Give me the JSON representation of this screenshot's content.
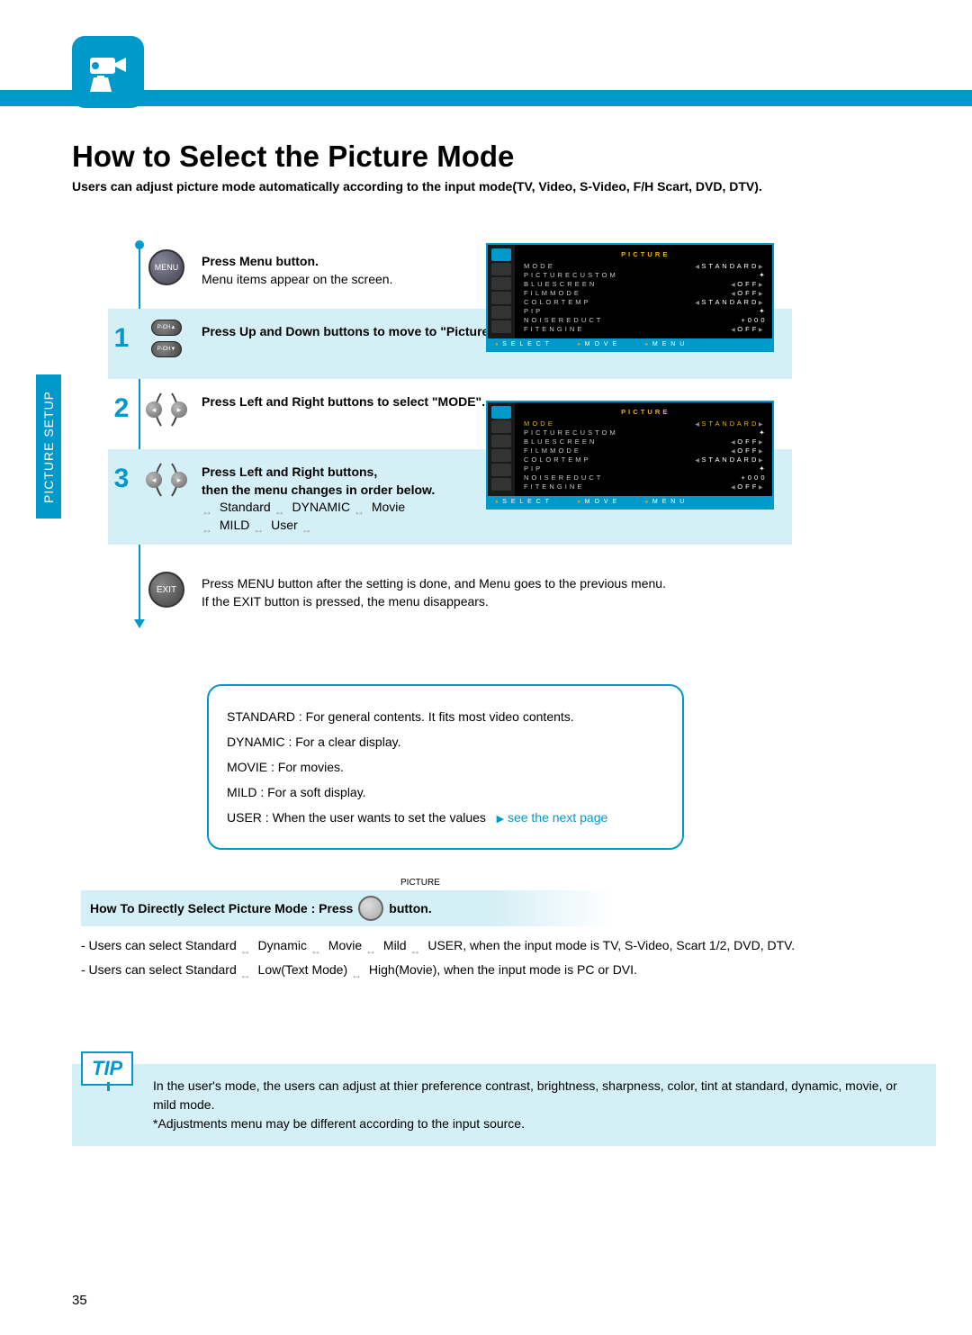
{
  "page_number": "35",
  "side_tab": "PICTURE SETUP",
  "title": "How to Select the Picture Mode",
  "intro": "Users can adjust picture mode automatically according to the input mode(TV, Video, S-Video, F/H Scart, DVD, DTV).",
  "colors": {
    "accent": "#0099cc",
    "shade": "#d4eff5",
    "osd_highlight": "#f9b000"
  },
  "steps": {
    "s0": {
      "button": "MENU",
      "bold": "Press Menu button.",
      "text": "Menu items appear on the screen."
    },
    "s1": {
      "num": "1",
      "button_up": "P-CH▲",
      "button_dn": "P-CH▼",
      "bold": "Press Up and Down buttons to move to \"Picture\" icon."
    },
    "s2": {
      "num": "2",
      "bold": "Press Left and Right buttons to select \"MODE\"."
    },
    "s3": {
      "num": "3",
      "bold1": "Press Left and Right buttons,",
      "bold2": "then the menu changes in order below.",
      "cycle1a": "Standard",
      "cycle1b": "DYNAMIC",
      "cycle1c": "Movie",
      "cycle2a": "MILD",
      "cycle2b": "User"
    },
    "exit": {
      "button": "EXIT",
      "line1": "Press MENU button after the setting is done, and Menu goes to the previous menu.",
      "line2": "If the EXIT button is pressed, the menu disappears."
    }
  },
  "osd": {
    "title": "P I C T U R E",
    "rows": [
      {
        "label": "M O D E",
        "value": "S T A N D A R D",
        "arrows": true,
        "highlight": true
      },
      {
        "label": "P I C T U R E   C U S T O M",
        "value": "",
        "enter": true
      },
      {
        "label": "B L U E   S C R E E N",
        "value": "O F F",
        "arrows": true
      },
      {
        "label": "F I L M   M O D E",
        "value": "O F F",
        "arrows": true
      },
      {
        "label": "C O L O R   T E M P",
        "value": "S T A N D A R D",
        "arrows": true
      },
      {
        "label": "P I P",
        "value": "",
        "enter": true
      },
      {
        "label": "N O I S E   R E D U C T",
        "value": "+ 0 0 0",
        "plain": true
      },
      {
        "label": "F I T   E N G I N E",
        "value": "O F F",
        "arrows": true
      }
    ],
    "footer": {
      "a": "S E L E C T",
      "b": "M O V E",
      "c": "M E N U"
    }
  },
  "definitions": {
    "d1": "STANDARD : For general contents. It fits most video contents.",
    "d2": "DYNAMIC : For a clear display.",
    "d3": "MOVIE : For movies.",
    "d4": "MILD : For a soft display.",
    "d5a": "USER : When the user wants to set the values",
    "d5_link": "see the next page"
  },
  "direct": {
    "pic_label": "PICTURE",
    "text_before": "How To Directly Select Picture Mode :  Press",
    "text_after": "button."
  },
  "notes": {
    "n1a": "- Users can select Standard ",
    "n1b": " Dynamic ",
    "n1c": " Movie ",
    "n1d": " Mild ",
    "n1e": " USER, when the input mode is TV, S-Video, Scart 1/2, DVD, DTV.",
    "n2a": "- Users can select Standard ",
    "n2b": " Low(Text Mode) ",
    "n2c": " High(Movie), when the input mode is PC or DVI."
  },
  "tip": {
    "label": "TIP",
    "line1": "In the user's mode, the users can adjust at thier preference contrast, brightness, sharpness, color, tint at standard, dynamic, movie, or mild mode.",
    "line2": "*Adjustments menu may be different according to the input source."
  }
}
